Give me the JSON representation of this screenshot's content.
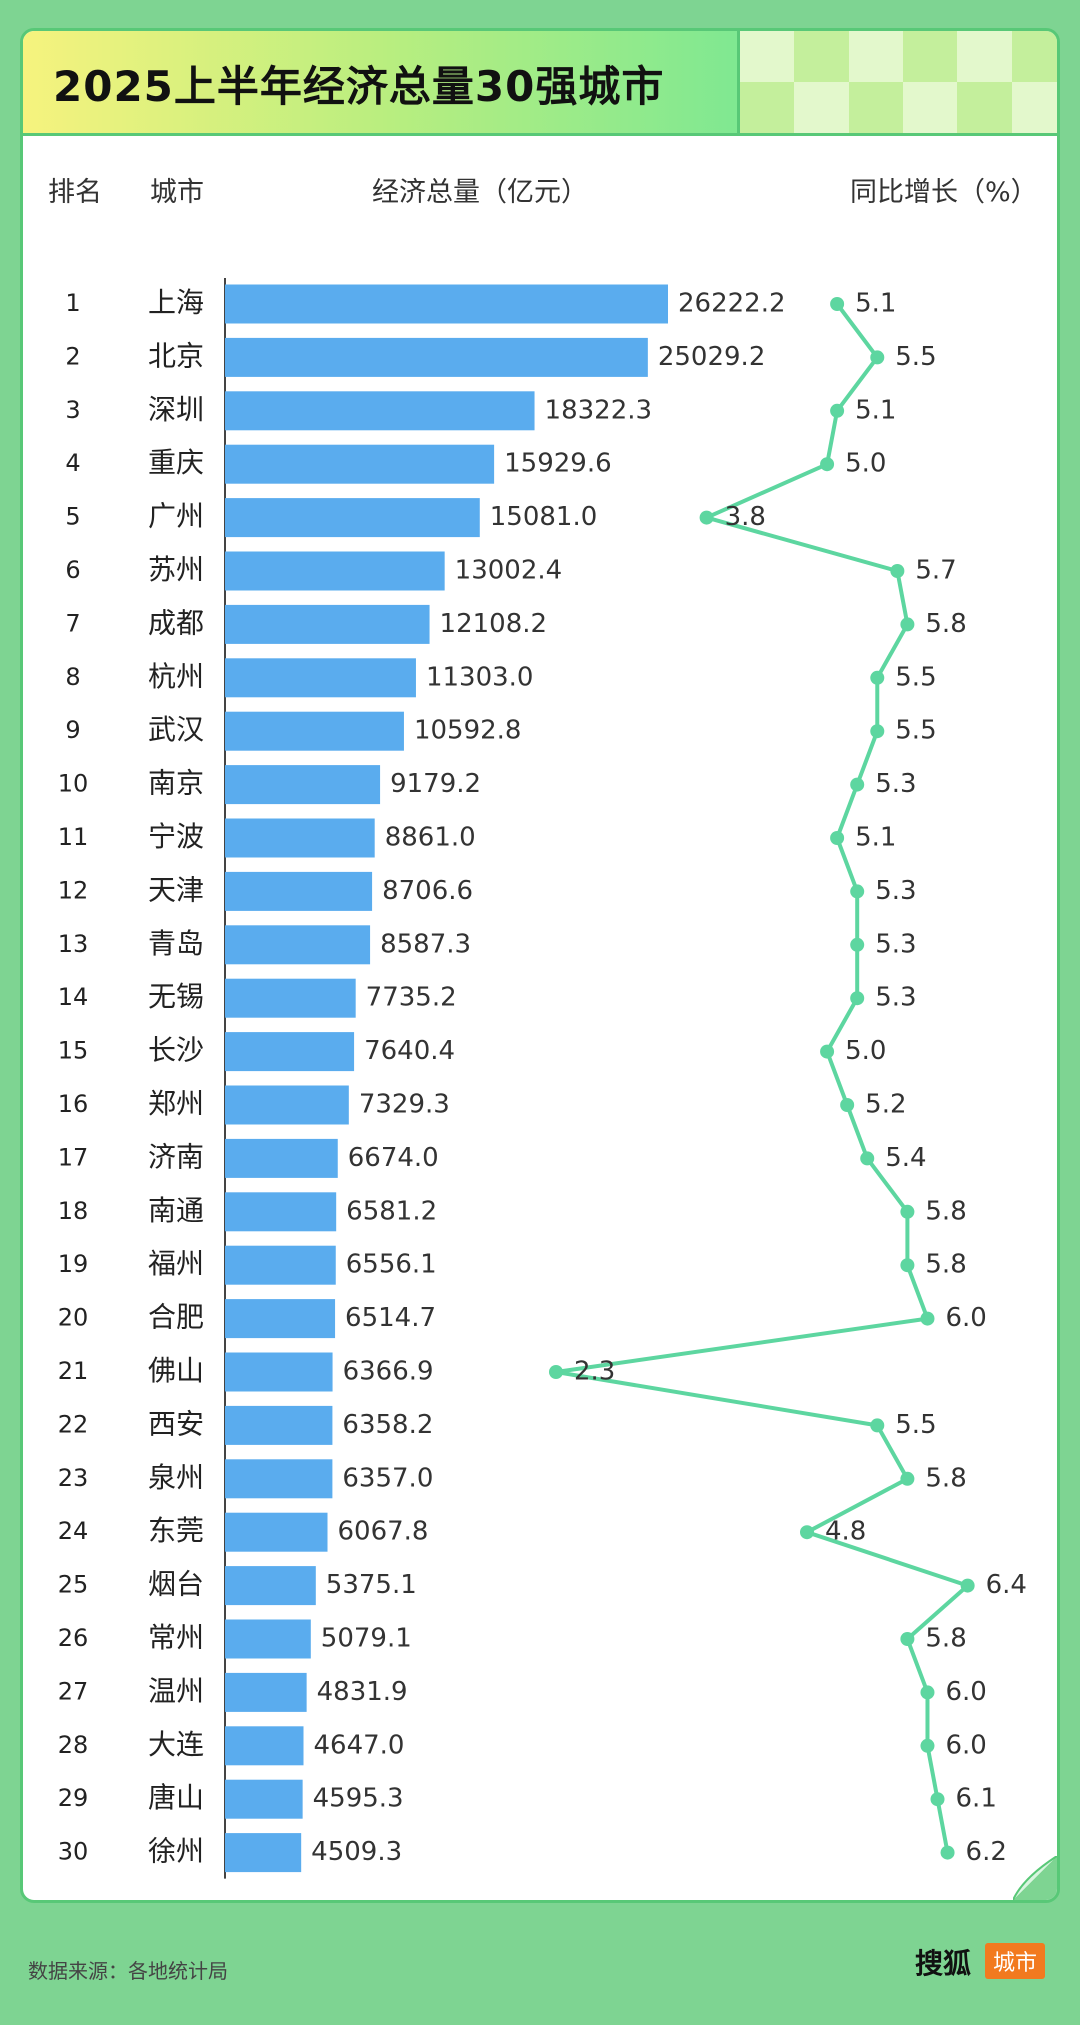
{
  "title": "2025上半年经济总量30强城市",
  "headers": {
    "rank": "排名",
    "city": "城市",
    "gdp": "经济总量（亿元）",
    "growth": "同比增长（%）"
  },
  "footer": {
    "source": "数据来源：各地统计局",
    "brand": "搜狐",
    "brand_tag": "城市"
  },
  "colors": {
    "bar": "#5aacee",
    "line": "#5dd6a0",
    "background": "#7ed492",
    "border": "#58c877"
  },
  "chart_data": {
    "type": "bar",
    "categories": [
      "上海",
      "北京",
      "深圳",
      "重庆",
      "广州",
      "苏州",
      "成都",
      "杭州",
      "武汉",
      "南京",
      "宁波",
      "天津",
      "青岛",
      "无锡",
      "长沙",
      "郑州",
      "济南",
      "南通",
      "福州",
      "合肥",
      "佛山",
      "西安",
      "泉州",
      "东莞",
      "烟台",
      "常州",
      "温州",
      "大连",
      "唐山",
      "徐州"
    ],
    "ranks": [
      "1",
      "2",
      "3",
      "4",
      "5",
      "6",
      "7",
      "8",
      "9",
      "10",
      "11",
      "12",
      "13",
      "14",
      "15",
      "16",
      "17",
      "18",
      "19",
      "20",
      "21",
      "22",
      "23",
      "24",
      "25",
      "26",
      "27",
      "28",
      "29",
      "30"
    ],
    "series": [
      {
        "name": "经济总量（亿元）",
        "type": "bar",
        "values": [
          26222.2,
          25029.2,
          18322.3,
          15929.6,
          15081.0,
          13002.4,
          12108.2,
          11303.0,
          10592.8,
          9179.2,
          8861.0,
          8706.6,
          8587.3,
          7735.2,
          7640.4,
          7329.3,
          6674.0,
          6581.2,
          6556.1,
          6514.7,
          6366.9,
          6358.2,
          6357.0,
          6067.8,
          5375.1,
          5079.1,
          4831.9,
          4647.0,
          4595.3,
          4509.3
        ],
        "labels": [
          "26222.2",
          "25029.2",
          "18322.3",
          "15929.6",
          "15081.0",
          "13002.4",
          "12108.2",
          "11303.0",
          "10592.8",
          "9179.2",
          "8861.0",
          "8706.6",
          "8587.3",
          "7735.2",
          "7640.4",
          "7329.3",
          "6674.0",
          "6581.2",
          "6556.1",
          "6514.7",
          "6366.9",
          "6358.2",
          "6357.0",
          "6067.8",
          "5375.1",
          "5079.1",
          "4831.9",
          "4647.0",
          "4595.3",
          "4509.3"
        ]
      },
      {
        "name": "同比增长（%）",
        "type": "line",
        "values": [
          5.1,
          5.5,
          5.1,
          5.0,
          3.8,
          5.7,
          5.8,
          5.5,
          5.5,
          5.3,
          5.1,
          5.3,
          5.3,
          5.3,
          5.0,
          5.2,
          5.4,
          5.8,
          5.8,
          6.0,
          2.3,
          5.5,
          5.8,
          4.8,
          6.4,
          5.8,
          6.0,
          6.0,
          6.1,
          6.2
        ],
        "labels": [
          "5.1",
          "5.5",
          "5.1",
          "5.0",
          "3.8",
          "5.7",
          "5.8",
          "5.5",
          "5.5",
          "5.3",
          "5.1",
          "5.3",
          "5.3",
          "5.3",
          "5.0",
          "5.2",
          "5.4",
          "5.8",
          "5.8",
          "6.0",
          "2.3",
          "5.5",
          "5.8",
          "4.8",
          "6.4",
          "5.8",
          "6.0",
          "6.0",
          "6.1",
          "6.2"
        ]
      }
    ]
  }
}
